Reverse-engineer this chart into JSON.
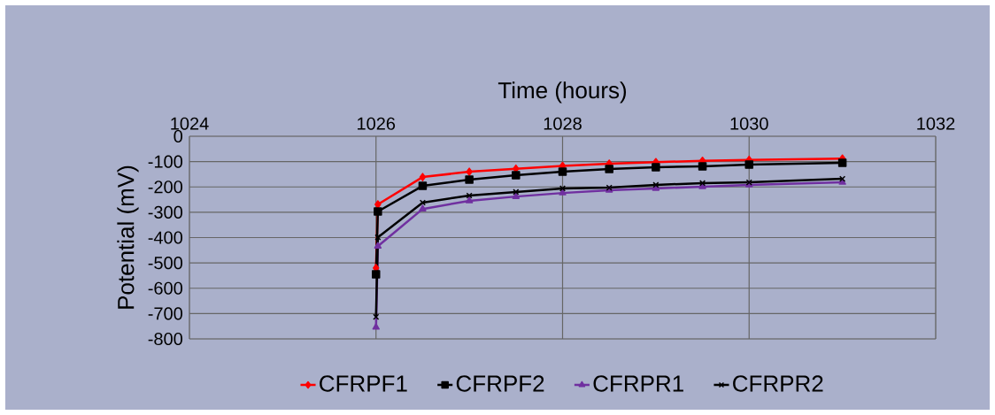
{
  "chart_data": {
    "type": "line",
    "xlabel": "Time (hours)",
    "ylabel": "Potential (mV)",
    "xlim": [
      1024,
      1032
    ],
    "xticks": [
      1024,
      1026,
      1028,
      1030,
      1032
    ],
    "ylim": [
      -800,
      0
    ],
    "yticks": [
      0,
      -100,
      -200,
      -300,
      -400,
      -500,
      -600,
      -700,
      -800
    ],
    "grid": true,
    "legend": "bottom",
    "line_style": "solid",
    "series": [
      {
        "name": "CFRPF1",
        "color": "#ff0000",
        "marker": "diamond",
        "x": [
          1026,
          1026.02,
          1026.5,
          1027,
          1027.5,
          1028,
          1028.5,
          1029,
          1029.5,
          1030,
          1031
        ],
        "values": [
          -520,
          -269,
          -161,
          -140,
          -128,
          -117,
          -108,
          -102,
          -97,
          -93,
          -88
        ]
      },
      {
        "name": "CFRPF2",
        "color": "#000000",
        "marker": "square",
        "x": [
          1026,
          1026.02,
          1026.5,
          1027,
          1027.5,
          1028,
          1028.5,
          1029,
          1029.5,
          1030,
          1031
        ],
        "values": [
          -545,
          -297,
          -196,
          -171,
          -154,
          -140,
          -129,
          -122,
          -119,
          -112,
          -105
        ]
      },
      {
        "name": "CFRPR1",
        "color": "#7030a0",
        "marker": "triangle",
        "x": [
          1026,
          1026.02,
          1026.5,
          1027,
          1027.5,
          1028,
          1028.5,
          1029,
          1029.5,
          1030,
          1031
        ],
        "values": [
          -754,
          -434,
          -287,
          -255,
          -238,
          -224,
          -213,
          -206,
          -199,
          -192,
          -182
        ]
      },
      {
        "name": "CFRPR2",
        "color": "#000000",
        "marker": "cross",
        "x": [
          1026,
          1026.02,
          1026.5,
          1027,
          1027.5,
          1028,
          1028.5,
          1029,
          1029.5,
          1030,
          1031
        ],
        "values": [
          -713,
          -399,
          -262,
          -234,
          -220,
          -206,
          -203,
          -192,
          -185,
          -182,
          -168
        ]
      }
    ]
  }
}
